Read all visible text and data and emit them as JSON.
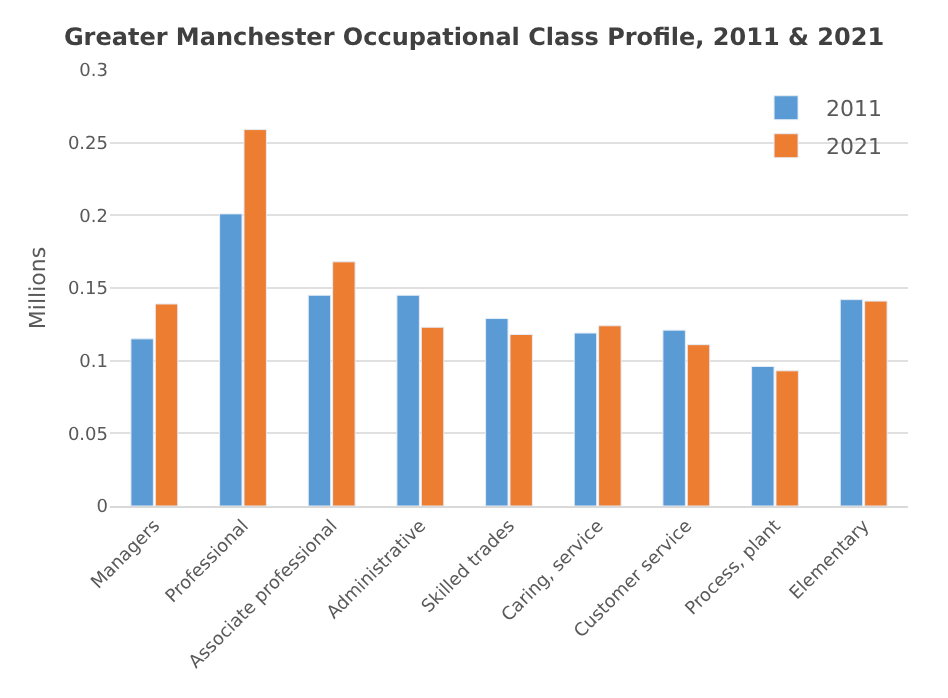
{
  "chart_data": {
    "type": "bar",
    "title": "Greater Manchester Occupational Class Profile, 2011 & 2021",
    "ylabel": "Millions",
    "categories": [
      "Managers",
      "Professional",
      "Associate professional",
      "Administrative",
      "Skilled trades",
      "Caring, service",
      "Customer service",
      "Process, plant",
      "Elementary"
    ],
    "series": [
      {
        "name": "2011",
        "color": "#5b9bd5",
        "values": [
          0.115,
          0.201,
          0.145,
          0.145,
          0.129,
          0.119,
          0.121,
          0.096,
          0.142
        ]
      },
      {
        "name": "2021",
        "color": "#ed7d31",
        "values": [
          0.139,
          0.259,
          0.168,
          0.123,
          0.118,
          0.124,
          0.111,
          0.093,
          0.141
        ]
      }
    ],
    "ylim": [
      0,
      0.3
    ],
    "yticks": [
      0,
      0.05,
      0.1,
      0.15,
      0.2,
      0.25,
      0.3
    ],
    "grid": "y",
    "legend": "top right"
  }
}
